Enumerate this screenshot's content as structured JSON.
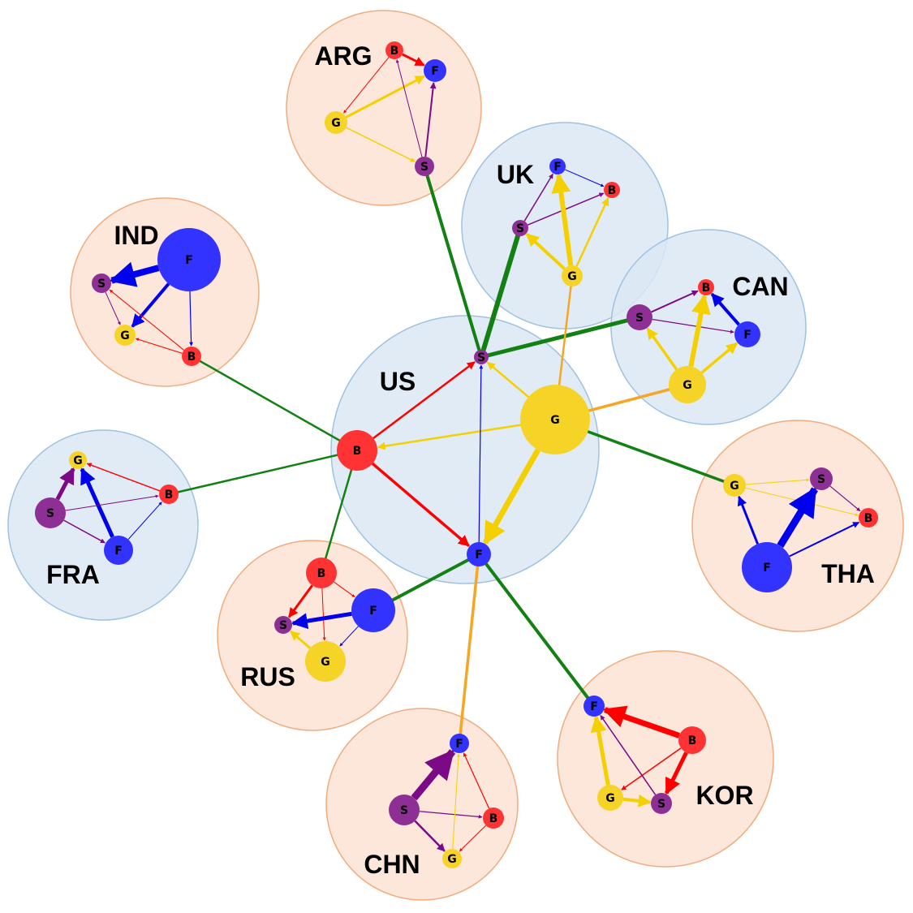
{
  "colors": {
    "blue_group_fill": "#dce8f5",
    "blue_group_stroke": "#9ec2e0",
    "orange_group_fill": "#fbe3d4",
    "orange_group_stroke": "#f0ac7e",
    "B": "#ff3333",
    "S": "#8e2f95",
    "F": "#3333ff",
    "G": "#f5d327",
    "edge_B": "#ff0000",
    "edge_S": "#7b0a86",
    "edge_F": "#0000ee",
    "edge_G": "#f5d000",
    "link_green": "#128012",
    "link_orange": "#f5a623"
  },
  "node_letters": {
    "B": "B",
    "S": "S",
    "F": "F",
    "G": "G"
  },
  "countries": [
    {
      "id": "US",
      "label": "US",
      "tone": "blue"
    },
    {
      "id": "ARG",
      "label": "ARG",
      "tone": "orange"
    },
    {
      "id": "UK",
      "label": "UK",
      "tone": "blue"
    },
    {
      "id": "CAN",
      "label": "CAN",
      "tone": "blue"
    },
    {
      "id": "IND",
      "label": "IND",
      "tone": "orange"
    },
    {
      "id": "FRA",
      "label": "FRA",
      "tone": "blue"
    },
    {
      "id": "THA",
      "label": "THA",
      "tone": "orange"
    },
    {
      "id": "RUS",
      "label": "RUS",
      "tone": "orange"
    },
    {
      "id": "CHN",
      "label": "CHN",
      "tone": "orange"
    },
    {
      "id": "KOR",
      "label": "KOR",
      "tone": "orange"
    }
  ]
}
